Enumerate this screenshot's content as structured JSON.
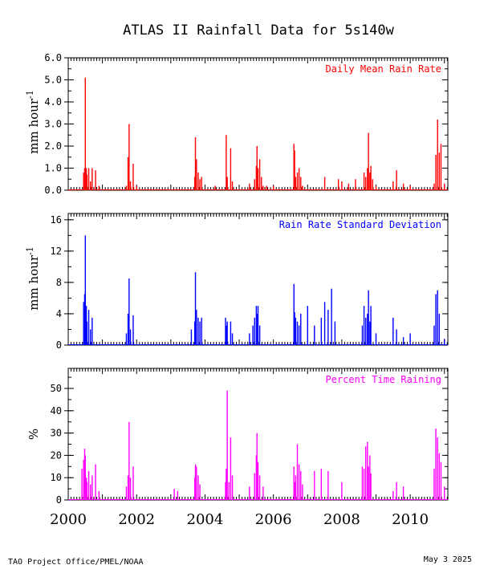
{
  "title": "ATLAS II Rainfall Data for 5s140w",
  "footer": {
    "left": "TAO Project Office/PMEL/NOAA",
    "right": "May  3 2025"
  },
  "chart_data": [
    {
      "type": "bar",
      "label": "Daily Mean Rain Rate",
      "color": "#ff0000",
      "ylabel": "mm hour",
      "ylabel_sup": "-1",
      "ylim": [
        0,
        6
      ],
      "yticks": [
        "0.0",
        "1.0",
        "2.0",
        "3.0",
        "4.0",
        "5.0",
        "6.0"
      ],
      "xlim": [
        2000.0,
        2011.1
      ],
      "series": [
        {
          "x": [
            2000.45,
            2000.48,
            2000.5,
            2000.53,
            2000.55,
            2000.6,
            2000.65,
            2000.7,
            2000.8,
            2000.9,
            2001.7,
            2001.75,
            2001.78,
            2001.82,
            2001.9,
            2002.0,
            2003.7,
            2003.72,
            2003.75,
            2003.8,
            2003.85,
            2003.9,
            2004.3,
            2004.62,
            2004.65,
            2004.75,
            2004.8,
            2005.3,
            2005.45,
            2005.5,
            2005.52,
            2005.55,
            2005.6,
            2005.65,
            2005.7,
            2005.8,
            2006.0,
            2006.6,
            2006.62,
            2006.65,
            2006.7,
            2006.75,
            2006.8,
            2006.85,
            2007.5,
            2007.9,
            2008.0,
            2008.2,
            2008.4,
            2008.65,
            2008.7,
            2008.75,
            2008.78,
            2008.82,
            2008.85,
            2008.9,
            2009.0,
            2009.5,
            2009.6,
            2009.8,
            2010.0,
            2010.7,
            2010.75,
            2010.8,
            2010.85,
            2010.9,
            2011.0
          ],
          "y": [
            0.8,
            1.0,
            5.1,
            1.0,
            0.7,
            1.0,
            0.4,
            1.0,
            0.9,
            0.2,
            0.2,
            1.5,
            3.0,
            0.4,
            1.2,
            0.2,
            0.6,
            2.4,
            1.4,
            0.8,
            0.5,
            0.6,
            0.2,
            2.5,
            0.6,
            1.9,
            0.4,
            0.3,
            0.5,
            1.1,
            2.0,
            1.0,
            1.4,
            0.6,
            0.2,
            0.2,
            0.2,
            2.1,
            1.8,
            0.6,
            0.8,
            1.0,
            0.6,
            0.2,
            0.6,
            0.5,
            0.4,
            0.3,
            0.5,
            0.8,
            0.6,
            1.0,
            2.6,
            0.8,
            1.1,
            0.5,
            0.2,
            0.4,
            0.9,
            0.3,
            0.2,
            0.3,
            1.6,
            3.2,
            1.7,
            2.1,
            0.3
          ]
        }
      ]
    },
    {
      "type": "bar",
      "label": "Rain Rate Standard Deviation",
      "color": "#0000ff",
      "ylabel": "mm hour",
      "ylabel_sup": "-1",
      "ylim": [
        0,
        16.8
      ],
      "yticks": [
        "0",
        "4",
        "8",
        "12",
        "16"
      ],
      "xlim": [
        2000.0,
        2011.1
      ],
      "series": [
        {
          "x": [
            2000.45,
            2000.48,
            2000.5,
            2000.53,
            2000.55,
            2000.6,
            2000.65,
            2000.7,
            2001.7,
            2001.75,
            2001.78,
            2001.82,
            2001.9,
            2003.6,
            2003.7,
            2003.72,
            2003.75,
            2003.8,
            2003.85,
            2003.9,
            2004.6,
            2004.62,
            2004.65,
            2004.75,
            2004.8,
            2005.3,
            2005.4,
            2005.45,
            2005.5,
            2005.52,
            2005.55,
            2005.6,
            2006.6,
            2006.62,
            2006.65,
            2006.7,
            2006.75,
            2006.8,
            2007.0,
            2007.2,
            2007.4,
            2007.5,
            2007.6,
            2007.7,
            2007.8,
            2008.6,
            2008.65,
            2008.7,
            2008.75,
            2008.78,
            2008.82,
            2008.85,
            2009.0,
            2009.5,
            2009.6,
            2009.8,
            2010.0,
            2010.7,
            2010.75,
            2010.8,
            2010.85,
            2011.0
          ],
          "y": [
            5.5,
            6.5,
            14.0,
            5.0,
            3.0,
            4.5,
            2.0,
            3.5,
            1.5,
            4.0,
            8.5,
            2.0,
            3.8,
            2.0,
            3.0,
            9.3,
            4.5,
            3.5,
            3.0,
            3.5,
            3.5,
            2.5,
            3.0,
            3.0,
            1.5,
            1.5,
            2.5,
            3.5,
            5.0,
            4.0,
            5.0,
            2.5,
            7.8,
            4.2,
            3.5,
            3.0,
            2.5,
            4.0,
            5.0,
            2.5,
            3.5,
            5.5,
            4.5,
            7.2,
            3.0,
            2.5,
            5.0,
            3.5,
            4.0,
            7.0,
            3.0,
            5.0,
            1.5,
            3.5,
            2.0,
            1.0,
            1.5,
            2.5,
            6.5,
            7.0,
            4.0,
            0.8
          ]
        }
      ]
    },
    {
      "type": "bar",
      "label": "Percent Time Raining",
      "color": "#ff00ff",
      "ylabel": "%",
      "ylim": [
        0,
        59
      ],
      "yticks": [
        "0",
        "10",
        "20",
        "30",
        "40",
        "50"
      ],
      "xlim": [
        2000.0,
        2011.1
      ],
      "xticks": [
        "2000",
        "2002",
        "2004",
        "2006",
        "2008",
        "2010"
      ],
      "series": [
        {
          "x": [
            2000.4,
            2000.45,
            2000.48,
            2000.5,
            2000.53,
            2000.55,
            2000.6,
            2000.65,
            2000.7,
            2000.8,
            2000.9,
            2001.7,
            2001.75,
            2001.78,
            2001.82,
            2001.9,
            2003.1,
            2003.2,
            2003.7,
            2003.72,
            2003.75,
            2003.8,
            2003.85,
            2004.6,
            2004.62,
            2004.65,
            2004.7,
            2004.75,
            2004.8,
            2005.3,
            2005.45,
            2005.5,
            2005.52,
            2005.55,
            2005.6,
            2005.7,
            2006.6,
            2006.62,
            2006.65,
            2006.7,
            2006.75,
            2006.8,
            2006.85,
            2007.2,
            2007.4,
            2007.6,
            2008.0,
            2008.6,
            2008.65,
            2008.7,
            2008.75,
            2008.78,
            2008.82,
            2008.85,
            2009.5,
            2009.6,
            2009.8,
            2010.7,
            2010.75,
            2010.8,
            2010.85,
            2010.9,
            2011.0
          ],
          "y": [
            14,
            18,
            23,
            20,
            10,
            8,
            13,
            7,
            11,
            16,
            4,
            6,
            11,
            35,
            10,
            15,
            5,
            4,
            10,
            16,
            15,
            11,
            7,
            8,
            14,
            49,
            8,
            28,
            11,
            6,
            12,
            20,
            30,
            17,
            11,
            6,
            15,
            8,
            11,
            25,
            16,
            13,
            7,
            13,
            14,
            13,
            8,
            15,
            14,
            24,
            26,
            15,
            20,
            12,
            4,
            8,
            6,
            14,
            32,
            28,
            21,
            17,
            6
          ]
        }
      ]
    }
  ]
}
